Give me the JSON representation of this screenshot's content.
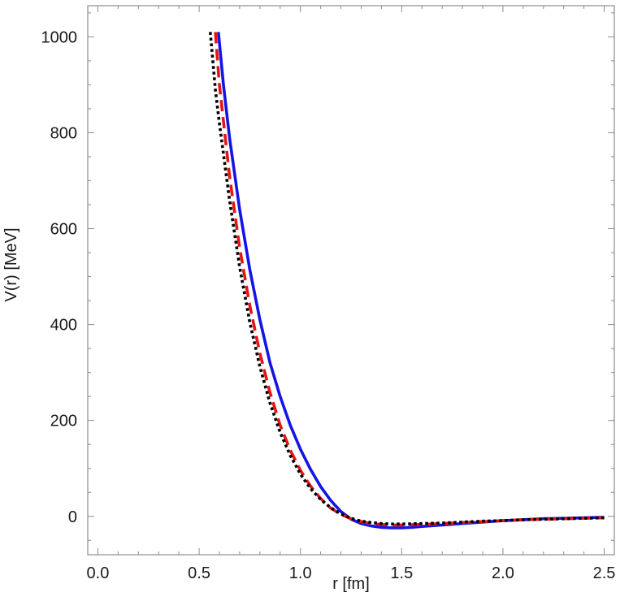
{
  "chart_data": {
    "type": "line",
    "xlabel": "r [fm]",
    "ylabel": "V(r) [MeV]",
    "xlim": [
      -0.05,
      2.55
    ],
    "ylim": [
      -80,
      1065
    ],
    "x_ticks": [
      0.0,
      0.5,
      1.0,
      1.5,
      2.0,
      2.5
    ],
    "x_tick_labels": [
      "0.0",
      "0.5",
      "1.0",
      "1.5",
      "2.0",
      "2.5"
    ],
    "y_ticks": [
      0,
      200,
      400,
      600,
      800,
      1000
    ],
    "y_tick_labels": [
      "0",
      "200",
      "400",
      "600",
      "800",
      "1000"
    ],
    "grid": false,
    "legend": "none",
    "series": [
      {
        "color": "#1414e6",
        "style": "solid",
        "x": [
          0.595,
          0.62,
          0.65,
          0.7,
          0.75,
          0.8,
          0.85,
          0.9,
          0.95,
          1.0,
          1.05,
          1.1,
          1.15,
          1.2,
          1.25,
          1.3,
          1.35,
          1.4,
          1.45,
          1.5,
          1.55,
          1.6,
          1.7,
          1.8,
          1.9,
          2.0,
          2.1,
          2.2,
          2.3,
          2.4,
          2.5
        ],
        "y": [
          1010,
          900,
          790,
          640,
          515,
          410,
          320,
          250,
          190,
          140,
          98,
          62,
          33,
          10,
          -6,
          -15,
          -20,
          -23,
          -24,
          -24,
          -23,
          -21,
          -18,
          -15,
          -12,
          -9,
          -7,
          -5,
          -4,
          -3,
          -2
        ]
      },
      {
        "color": "#e61414",
        "style": "dashed",
        "x": [
          0.58,
          0.6,
          0.65,
          0.7,
          0.75,
          0.8,
          0.85,
          0.9,
          0.95,
          1.0,
          1.05,
          1.1,
          1.15,
          1.2,
          1.25,
          1.3,
          1.35,
          1.4,
          1.45,
          1.5,
          1.6,
          1.7,
          1.8,
          1.9,
          2.0,
          2.1,
          2.2,
          2.3,
          2.4,
          2.5
        ],
        "y": [
          1010,
          900,
          710,
          560,
          440,
          340,
          258,
          190,
          138,
          96,
          63,
          37,
          17,
          4,
          -5,
          -11,
          -15,
          -17,
          -18,
          -18,
          -17,
          -15,
          -13,
          -11,
          -9,
          -7,
          -6,
          -5,
          -4,
          -3
        ]
      },
      {
        "color": "#000000",
        "style": "dotted",
        "x": [
          0.555,
          0.58,
          0.6,
          0.65,
          0.7,
          0.75,
          0.8,
          0.85,
          0.9,
          0.95,
          1.0,
          1.05,
          1.1,
          1.15,
          1.2,
          1.25,
          1.3,
          1.35,
          1.4,
          1.45,
          1.5,
          1.6,
          1.7,
          1.8,
          1.9,
          2.0,
          2.1,
          2.2,
          2.3,
          2.4,
          2.5
        ],
        "y": [
          1010,
          890,
          820,
          660,
          520,
          405,
          312,
          236,
          175,
          127,
          88,
          58,
          35,
          18,
          5,
          -4,
          -10,
          -13,
          -15,
          -16,
          -16,
          -15,
          -14,
          -12,
          -10,
          -9,
          -7,
          -6,
          -5,
          -4,
          -3
        ]
      }
    ]
  }
}
